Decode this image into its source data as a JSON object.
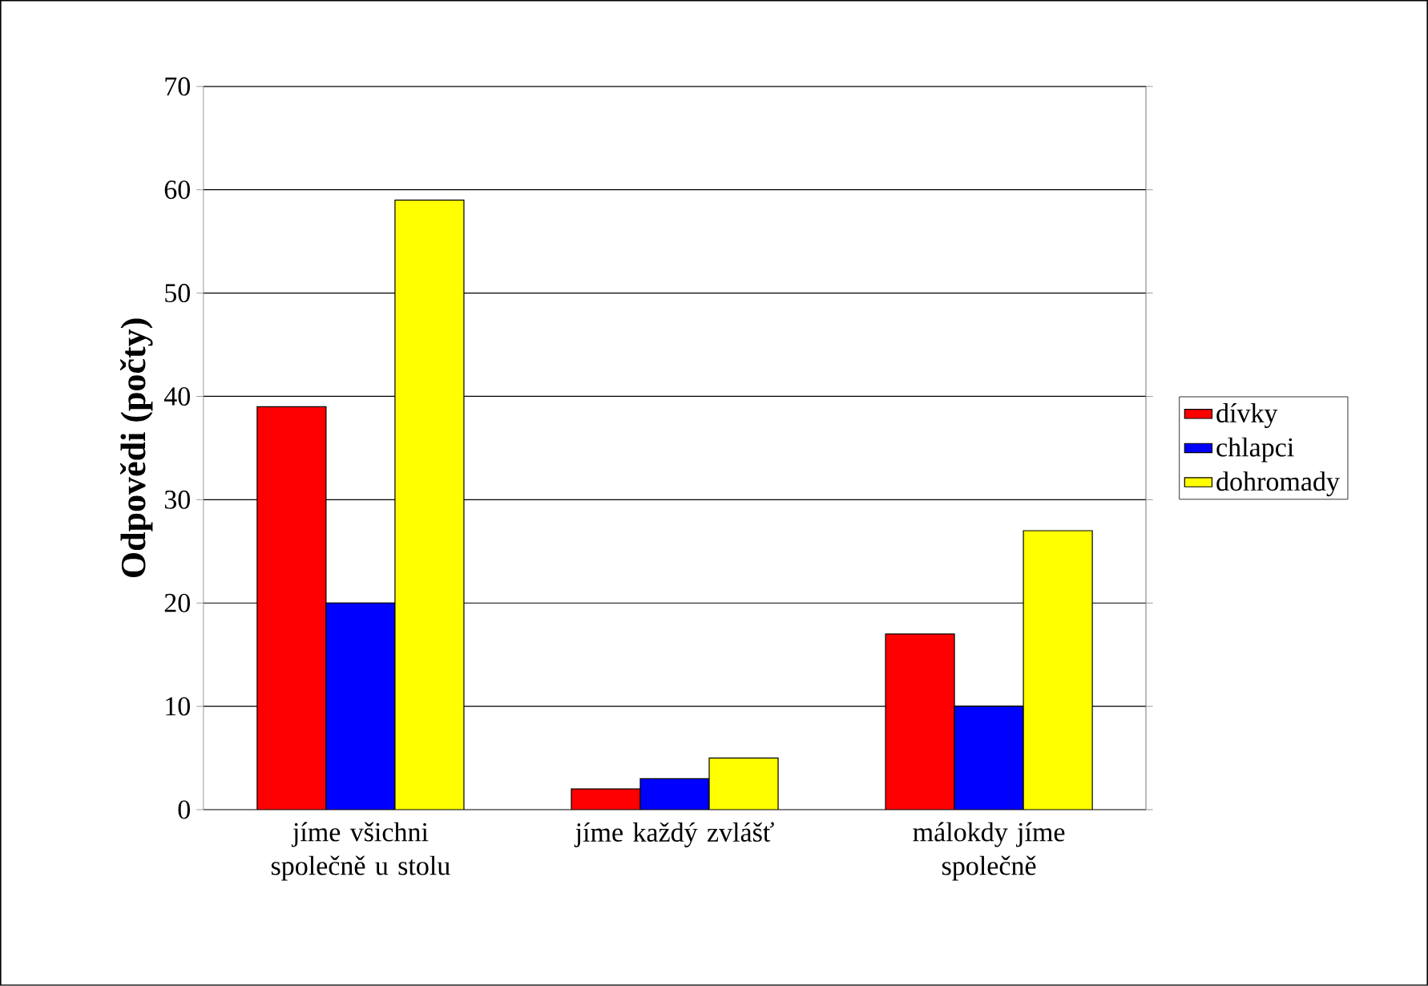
{
  "chart_data": {
    "type": "bar",
    "ylabel": "Odpovědi (počty)",
    "categories": [
      "jíme všichni společně u stolu",
      "jíme každý zvlášť",
      "málokdy jíme společně"
    ],
    "series": [
      {
        "name": "dívky",
        "color": "#ff0000",
        "values": [
          39,
          2,
          17
        ]
      },
      {
        "name": "chlapci",
        "color": "#0000ff",
        "values": [
          20,
          3,
          10
        ]
      },
      {
        "name": "dohromady",
        "color": "#ffff00",
        "values": [
          59,
          5,
          27
        ]
      }
    ],
    "ylim": [
      0,
      70
    ],
    "yticks": [
      0,
      10,
      20,
      30,
      40,
      50,
      60,
      70
    ],
    "grid": "y",
    "legend": "right"
  }
}
